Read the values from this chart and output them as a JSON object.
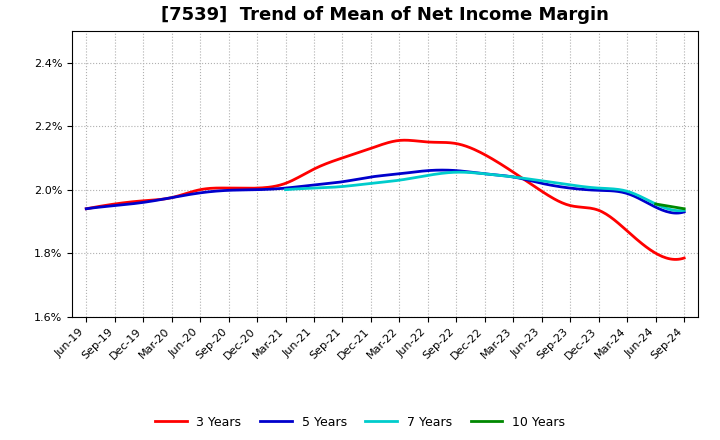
{
  "title": "[7539]  Trend of Mean of Net Income Margin",
  "background_color": "#ffffff",
  "plot_bg_color": "#ffffff",
  "grid_color": "#b0b0b0",
  "x_labels": [
    "Jun-19",
    "Sep-19",
    "Dec-19",
    "Mar-20",
    "Jun-20",
    "Sep-20",
    "Dec-20",
    "Mar-21",
    "Jun-21",
    "Sep-21",
    "Dec-21",
    "Mar-22",
    "Jun-22",
    "Sep-22",
    "Dec-22",
    "Mar-23",
    "Jun-23",
    "Sep-23",
    "Dec-23",
    "Mar-24",
    "Jun-24",
    "Sep-24"
  ],
  "series": {
    "3 Years": {
      "color": "#ff0000",
      "values": [
        1.94,
        1.955,
        1.965,
        1.975,
        2.0,
        2.005,
        2.005,
        2.02,
        2.065,
        2.1,
        2.13,
        2.155,
        2.15,
        2.145,
        2.11,
        2.055,
        1.995,
        1.95,
        1.935,
        1.87,
        1.8,
        1.785
      ]
    },
    "5 Years": {
      "color": "#0000cc",
      "values": [
        1.94,
        1.95,
        1.96,
        1.975,
        1.99,
        1.998,
        2.0,
        2.005,
        2.015,
        2.025,
        2.04,
        2.05,
        2.06,
        2.06,
        2.05,
        2.04,
        2.02,
        2.005,
        1.998,
        1.988,
        1.945,
        1.93
      ]
    },
    "7 Years": {
      "color": "#00cccc",
      "values": [
        null,
        null,
        null,
        null,
        null,
        null,
        null,
        2.0,
        2.005,
        2.01,
        2.02,
        2.03,
        2.045,
        2.055,
        2.05,
        2.04,
        2.028,
        2.015,
        2.005,
        1.995,
        1.955,
        1.935
      ]
    },
    "10 Years": {
      "color": "#008800",
      "values": [
        null,
        null,
        null,
        null,
        null,
        null,
        null,
        null,
        null,
        null,
        null,
        null,
        null,
        null,
        null,
        null,
        null,
        null,
        null,
        null,
        1.955,
        1.94
      ]
    }
  },
  "ylim": [
    1.6,
    2.5
  ],
  "yticks": [
    1.6,
    1.8,
    2.0,
    2.2,
    2.4
  ],
  "title_fontsize": 13,
  "tick_fontsize": 8,
  "legend_fontsize": 9
}
